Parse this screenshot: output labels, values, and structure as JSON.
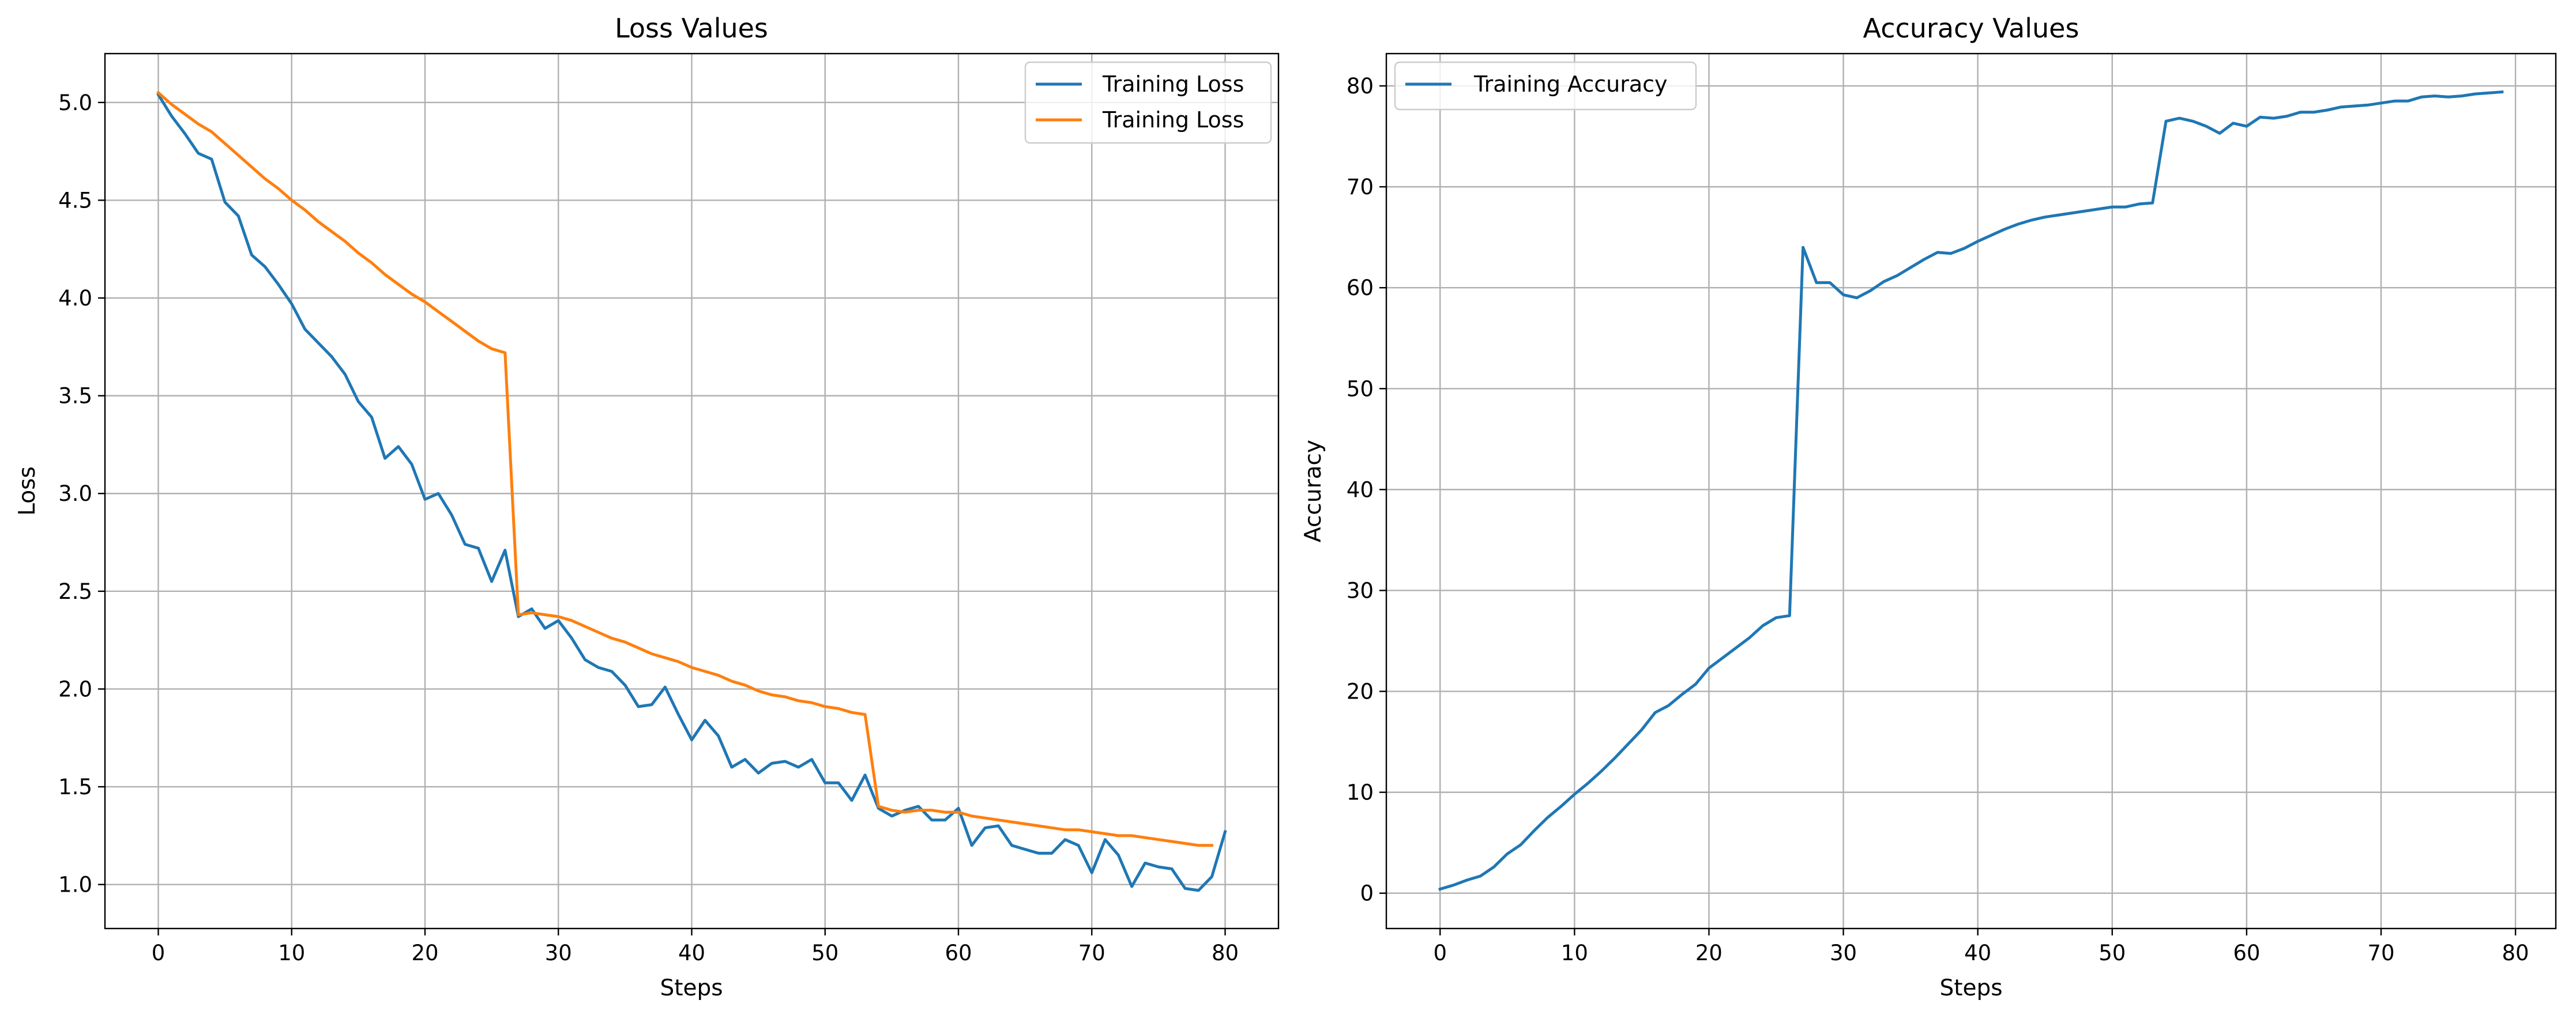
{
  "chart_data": [
    {
      "type": "line",
      "title": "Loss Values",
      "xlabel": "Steps",
      "ylabel": "Loss",
      "xlim": [
        -4,
        84
      ],
      "ylim": [
        0.775,
        5.25
      ],
      "xticks": [
        0,
        10,
        20,
        30,
        40,
        50,
        60,
        70,
        80
      ],
      "yticks": [
        1.0,
        1.5,
        2.0,
        2.5,
        3.0,
        3.5,
        4.0,
        4.5,
        5.0
      ],
      "ytick_labels": [
        "1.0",
        "1.5",
        "2.0",
        "2.5",
        "3.0",
        "3.5",
        "4.0",
        "4.5",
        "5.0"
      ],
      "grid": true,
      "legend_position": "top-right",
      "series": [
        {
          "name": "Training Loss",
          "color": "#1f77b4",
          "x": [
            0,
            1,
            2,
            3,
            4,
            5,
            6,
            7,
            8,
            9,
            10,
            11,
            12,
            13,
            14,
            15,
            16,
            17,
            18,
            19,
            20,
            21,
            22,
            23,
            24,
            25,
            26,
            27,
            28,
            29,
            30,
            31,
            32,
            33,
            34,
            35,
            36,
            37,
            38,
            39,
            40,
            41,
            42,
            43,
            44,
            45,
            46,
            47,
            48,
            49,
            50,
            51,
            52,
            53,
            54,
            55,
            56,
            57,
            58,
            59,
            60,
            61,
            62,
            63,
            64,
            65,
            66,
            67,
            68,
            69,
            70,
            71,
            72,
            73,
            74,
            75,
            76,
            77,
            78,
            79,
            80
          ],
          "values": [
            5.04,
            4.93,
            4.84,
            4.74,
            4.71,
            4.49,
            4.42,
            4.22,
            4.16,
            4.07,
            3.97,
            3.84,
            3.77,
            3.7,
            3.61,
            3.47,
            3.39,
            3.18,
            3.24,
            3.15,
            2.97,
            3.0,
            2.89,
            2.74,
            2.72,
            2.55,
            2.71,
            2.37,
            2.41,
            2.31,
            2.35,
            2.26,
            2.15,
            2.11,
            2.09,
            2.02,
            1.91,
            1.92,
            2.01,
            1.87,
            1.74,
            1.84,
            1.76,
            1.6,
            1.64,
            1.57,
            1.62,
            1.63,
            1.6,
            1.64,
            1.52,
            1.52,
            1.43,
            1.56,
            1.39,
            1.35,
            1.38,
            1.4,
            1.33,
            1.33,
            1.39,
            1.2,
            1.29,
            1.3,
            1.2,
            1.18,
            1.16,
            1.16,
            1.23,
            1.2,
            1.06,
            1.23,
            1.15,
            0.99,
            1.11,
            1.09,
            1.08,
            0.98,
            0.97,
            1.04,
            1.27
          ]
        },
        {
          "name": "Training Loss",
          "color": "#ff7f0e",
          "x": [
            0,
            1,
            2,
            3,
            4,
            5,
            6,
            7,
            8,
            9,
            10,
            11,
            12,
            13,
            14,
            15,
            16,
            17,
            18,
            19,
            20,
            21,
            22,
            23,
            24,
            25,
            26,
            27,
            28,
            29,
            30,
            31,
            32,
            33,
            34,
            35,
            36,
            37,
            38,
            39,
            40,
            41,
            42,
            43,
            44,
            45,
            46,
            47,
            48,
            49,
            50,
            51,
            52,
            53,
            54,
            55,
            56,
            57,
            58,
            59,
            60,
            61,
            62,
            63,
            64,
            65,
            66,
            67,
            68,
            69,
            70,
            71,
            72,
            73,
            74,
            75,
            76,
            77,
            78,
            79
          ],
          "values": [
            5.05,
            4.99,
            4.94,
            4.89,
            4.85,
            4.79,
            4.73,
            4.67,
            4.61,
            4.56,
            4.5,
            4.45,
            4.39,
            4.34,
            4.29,
            4.23,
            4.18,
            4.12,
            4.07,
            4.02,
            3.98,
            3.93,
            3.88,
            3.83,
            3.78,
            3.74,
            3.72,
            2.38,
            2.39,
            2.38,
            2.37,
            2.35,
            2.32,
            2.29,
            2.26,
            2.24,
            2.21,
            2.18,
            2.16,
            2.14,
            2.11,
            2.09,
            2.07,
            2.04,
            2.02,
            1.99,
            1.97,
            1.96,
            1.94,
            1.93,
            1.91,
            1.9,
            1.88,
            1.87,
            1.4,
            1.38,
            1.37,
            1.38,
            1.38,
            1.37,
            1.37,
            1.35,
            1.34,
            1.33,
            1.32,
            1.31,
            1.3,
            1.29,
            1.28,
            1.28,
            1.27,
            1.26,
            1.25,
            1.25,
            1.24,
            1.23,
            1.22,
            1.21,
            1.2,
            1.2
          ]
        }
      ]
    },
    {
      "type": "line",
      "title": "Accuracy Values",
      "xlabel": "Steps",
      "ylabel": "Accuracy",
      "xlim": [
        -4,
        83
      ],
      "ylim": [
        -3.5,
        83.2
      ],
      "xticks": [
        0,
        10,
        20,
        30,
        40,
        50,
        60,
        70,
        80
      ],
      "yticks": [
        0,
        10,
        20,
        30,
        40,
        50,
        60,
        70,
        80
      ],
      "ytick_labels": [
        "0",
        "10",
        "20",
        "30",
        "40",
        "50",
        "60",
        "70",
        "80"
      ],
      "grid": true,
      "legend_position": "top-left",
      "series": [
        {
          "name": "Training Accuracy",
          "color": "#1f77b4",
          "x": [
            0,
            1,
            2,
            3,
            4,
            5,
            6,
            7,
            8,
            9,
            10,
            11,
            12,
            13,
            14,
            15,
            16,
            17,
            18,
            19,
            20,
            21,
            22,
            23,
            24,
            25,
            26,
            27,
            28,
            29,
            30,
            31,
            32,
            33,
            34,
            35,
            36,
            37,
            38,
            39,
            40,
            41,
            42,
            43,
            44,
            45,
            46,
            47,
            48,
            49,
            50,
            51,
            52,
            53,
            54,
            55,
            56,
            57,
            58,
            59,
            60,
            61,
            62,
            63,
            64,
            65,
            66,
            67,
            68,
            69,
            70,
            71,
            72,
            73,
            74,
            75,
            76,
            77,
            78,
            79
          ],
          "values": [
            0.4,
            0.8,
            1.3,
            1.7,
            2.6,
            3.9,
            4.8,
            6.2,
            7.5,
            8.6,
            9.8,
            10.9,
            12.1,
            13.4,
            14.8,
            16.2,
            17.9,
            18.6,
            19.7,
            20.7,
            22.3,
            23.3,
            24.3,
            25.3,
            26.5,
            27.3,
            27.5,
            64.0,
            60.5,
            60.5,
            59.3,
            59.0,
            59.7,
            60.6,
            61.2,
            62.0,
            62.8,
            63.5,
            63.4,
            63.9,
            64.6,
            65.2,
            65.8,
            66.3,
            66.7,
            67.0,
            67.2,
            67.4,
            67.6,
            67.8,
            68.0,
            68.0,
            68.3,
            68.4,
            76.5,
            76.8,
            76.5,
            76.0,
            75.3,
            76.3,
            76.0,
            76.9,
            76.8,
            77.0,
            77.4,
            77.4,
            77.6,
            77.9,
            78.0,
            78.1,
            78.3,
            78.5,
            78.5,
            78.9,
            79.0,
            78.9,
            79.0,
            79.2,
            79.3,
            79.4
          ]
        }
      ]
    }
  ]
}
